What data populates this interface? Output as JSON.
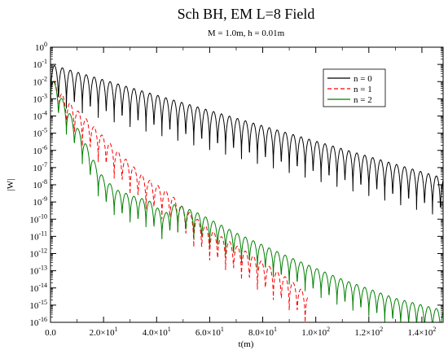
{
  "chart_data": {
    "type": "line",
    "title": "Sch BH, EM L=8 Field",
    "subtitle": "M = 1.0m, h = 0.01m",
    "xlabel": "t(m)",
    "ylabel": "|W|",
    "xlim": [
      0,
      148
    ],
    "ylim_log10": [
      -16,
      0
    ],
    "yscale": "log",
    "grid": false,
    "legend_position": "top-right",
    "x_ticks": [
      {
        "value": 0,
        "mantissa": "0.0",
        "exp": ""
      },
      {
        "value": 20,
        "mantissa": "2.0×10",
        "exp": "1"
      },
      {
        "value": 40,
        "mantissa": "4.0×10",
        "exp": "1"
      },
      {
        "value": 60,
        "mantissa": "6.0×10",
        "exp": "1"
      },
      {
        "value": 80,
        "mantissa": "8.0×10",
        "exp": "1"
      },
      {
        "value": 100,
        "mantissa": "1.0×10",
        "exp": "2"
      },
      {
        "value": 120,
        "mantissa": "1.2×10",
        "exp": "2"
      },
      {
        "value": 140,
        "mantissa": "1.4×10",
        "exp": "2"
      }
    ],
    "y_ticks": [
      {
        "log": 0,
        "base": "10",
        "exp": "0"
      },
      {
        "log": -1,
        "base": "10",
        "exp": "-1"
      },
      {
        "log": -2,
        "base": "10",
        "exp": "-2"
      },
      {
        "log": -3,
        "base": "10",
        "exp": "-3"
      },
      {
        "log": -4,
        "base": "10",
        "exp": "-4"
      },
      {
        "log": -5,
        "base": "10",
        "exp": "-5"
      },
      {
        "log": -6,
        "base": "10",
        "exp": "-6"
      },
      {
        "log": -7,
        "base": "10",
        "exp": "-7"
      },
      {
        "log": -8,
        "base": "10",
        "exp": "-8"
      },
      {
        "log": -9,
        "base": "10",
        "exp": "-9"
      },
      {
        "log": -10,
        "base": "10",
        "exp": "-10"
      },
      {
        "log": -11,
        "base": "10",
        "exp": "-11"
      },
      {
        "log": -12,
        "base": "10",
        "exp": "-12"
      },
      {
        "log": -13,
        "base": "10",
        "exp": "-13"
      },
      {
        "log": -14,
        "base": "10",
        "exp": "-14"
      },
      {
        "log": -15,
        "base": "10",
        "exp": "-15"
      },
      {
        "log": -16,
        "base": "10",
        "exp": "-16"
      }
    ],
    "series": [
      {
        "name": "n = 0",
        "color": "#000000",
        "dash": "solid",
        "t_range": [
          0,
          148
        ],
        "envelope": {
          "t": [
            0,
            148
          ],
          "log10_W": [
            -1.0,
            -7.6
          ]
        },
        "oscillation_period_t": 3.0,
        "notch_depth_decades": 2.3
      },
      {
        "name": "n = 1",
        "color": "#ff0000",
        "dash": "dashed",
        "t_range": [
          0,
          97
        ],
        "envelope": {
          "t": [
            0,
            5,
            15,
            25,
            35,
            45,
            50,
            60,
            75,
            90,
            97
          ],
          "log10_W": [
            -1.6,
            -2.9,
            -4.4,
            -6.0,
            -7.5,
            -8.5,
            -9.3,
            -10.6,
            -12.0,
            -13.5,
            -14.4
          ]
        },
        "oscillation_period_t": 3.0,
        "notch_depth_decades": 1.8
      },
      {
        "name": "n = 2",
        "color": "#008000",
        "dash": "solid",
        "t_range": [
          0,
          148
        ],
        "envelope": {
          "t": [
            0,
            5,
            12,
            17,
            20,
            25,
            32,
            37,
            43,
            47,
            55,
            70,
            90,
            110,
            130,
            148
          ],
          "log10_W": [
            -1.6,
            -3.2,
            -5.2,
            -6.8,
            -7.6,
            -8.3,
            -8.7,
            -8.9,
            -9.7,
            -9.1,
            -9.6,
            -10.8,
            -12.2,
            -13.5,
            -14.6,
            -15.3
          ]
        },
        "oscillation_period_t": 3.0,
        "notch_depth_decades": 1.6
      }
    ]
  }
}
